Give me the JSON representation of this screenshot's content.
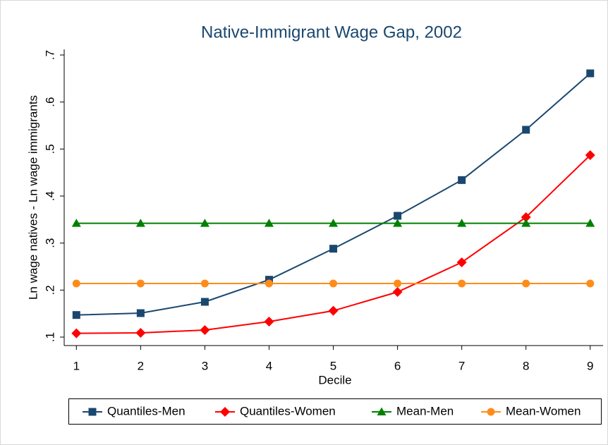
{
  "chart_data": {
    "type": "line",
    "title": "Native-Immigrant Wage Gap, 2002",
    "x_label": "Decile",
    "y_label": "Ln wage natives - Ln wage immigrants",
    "x": [
      1,
      2,
      3,
      4,
      5,
      6,
      7,
      8,
      9
    ],
    "series": [
      {
        "name": "Quantiles-Men",
        "color": "#1a476f",
        "marker": "square",
        "values": [
          0.147,
          0.151,
          0.175,
          0.222,
          0.288,
          0.358,
          0.434,
          0.541,
          0.661
        ]
      },
      {
        "name": "Quantiles-Women",
        "color": "#ff0000",
        "marker": "diamond",
        "values": [
          0.108,
          0.109,
          0.115,
          0.133,
          0.156,
          0.196,
          0.259,
          0.355,
          0.487
        ]
      },
      {
        "name": "Mean-Men",
        "color": "#008000",
        "marker": "triangle",
        "values": [
          0.342,
          0.342,
          0.342,
          0.342,
          0.342,
          0.342,
          0.342,
          0.342,
          0.342
        ]
      },
      {
        "name": "Mean-Women",
        "color": "#ff8c1a",
        "marker": "circle",
        "values": [
          0.214,
          0.214,
          0.214,
          0.214,
          0.214,
          0.214,
          0.214,
          0.214,
          0.214
        ]
      }
    ],
    "xlim": [
      0.81,
      9.2
    ],
    "ylim": [
      0.082,
      0.712
    ],
    "xticks": [
      1,
      2,
      3,
      4,
      5,
      6,
      7,
      8,
      9
    ],
    "yticks": [
      {
        "value": 0.1,
        "label": ".1"
      },
      {
        "value": 0.2,
        "label": ".2"
      },
      {
        "value": 0.3,
        "label": ".3"
      },
      {
        "value": 0.4,
        "label": ".4"
      },
      {
        "value": 0.5,
        "label": ".5"
      },
      {
        "value": 0.6,
        "label": ".6"
      },
      {
        "value": 0.7,
        "label": ".7"
      }
    ],
    "grid": false,
    "legend": "bottom"
  }
}
